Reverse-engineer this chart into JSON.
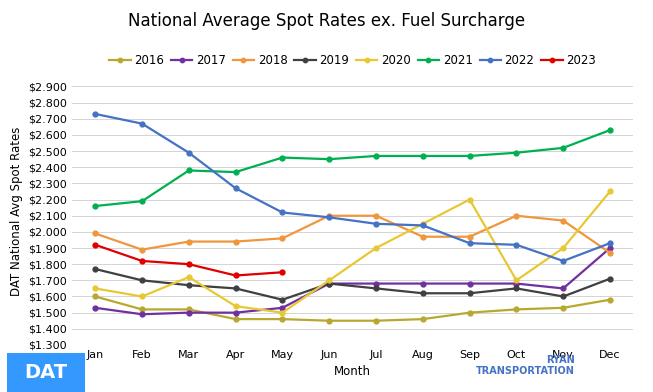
{
  "title": "National Average Spot Rates ex. Fuel Surcharge",
  "xlabel": "Month",
  "ylabel": "DAT National Avg Spot Rates",
  "months": [
    "Jan",
    "Feb",
    "Mar",
    "Apr",
    "May",
    "Jun",
    "Jul",
    "Aug",
    "Sep",
    "Oct",
    "Nov",
    "Dec"
  ],
  "ylim": [
    1.3,
    2.95
  ],
  "yticks": [
    1.3,
    1.4,
    1.5,
    1.6,
    1.7,
    1.8,
    1.9,
    2.0,
    2.1,
    2.2,
    2.3,
    2.4,
    2.5,
    2.6,
    2.7,
    2.8,
    2.9
  ],
  "series": {
    "2016": {
      "color": "#b8a830",
      "data": [
        1.6,
        1.52,
        1.52,
        1.46,
        1.46,
        1.45,
        1.45,
        1.46,
        1.5,
        1.52,
        1.53,
        1.58
      ]
    },
    "2017": {
      "color": "#7030a0",
      "data": [
        1.53,
        1.49,
        1.5,
        1.5,
        1.53,
        1.68,
        1.68,
        1.68,
        1.68,
        1.68,
        1.65,
        1.9
      ]
    },
    "2018": {
      "color": "#f0963c",
      "data": [
        1.99,
        1.89,
        1.94,
        1.94,
        1.96,
        2.1,
        2.1,
        1.97,
        1.97,
        2.1,
        2.07,
        1.87
      ]
    },
    "2019": {
      "color": "#404040",
      "data": [
        1.77,
        1.7,
        1.67,
        1.65,
        1.58,
        1.68,
        1.65,
        1.62,
        1.62,
        1.65,
        1.6,
        1.71
      ]
    },
    "2020": {
      "color": "#e8c832",
      "data": [
        1.65,
        1.6,
        1.72,
        1.54,
        1.5,
        1.7,
        1.9,
        2.05,
        2.2,
        1.7,
        1.9,
        2.25
      ]
    },
    "2021": {
      "color": "#00b050",
      "data": [
        2.16,
        2.19,
        2.38,
        2.37,
        2.46,
        2.45,
        2.47,
        2.47,
        2.47,
        2.49,
        2.52,
        2.63
      ]
    },
    "2022": {
      "color": "#4472c4",
      "data": [
        2.73,
        2.67,
        2.49,
        2.27,
        2.12,
        2.09,
        2.05,
        2.04,
        1.93,
        1.92,
        1.82,
        1.93
      ]
    },
    "2023": {
      "color": "#e00000",
      "data": [
        1.92,
        1.82,
        1.8,
        1.73,
        1.75,
        null,
        null,
        null,
        null,
        null,
        null,
        null
      ]
    }
  },
  "background_color": "#ffffff",
  "grid_color": "#d4d4d4",
  "title_fontsize": 12,
  "axis_label_fontsize": 8.5,
  "tick_fontsize": 8,
  "legend_fontsize": 8.5
}
